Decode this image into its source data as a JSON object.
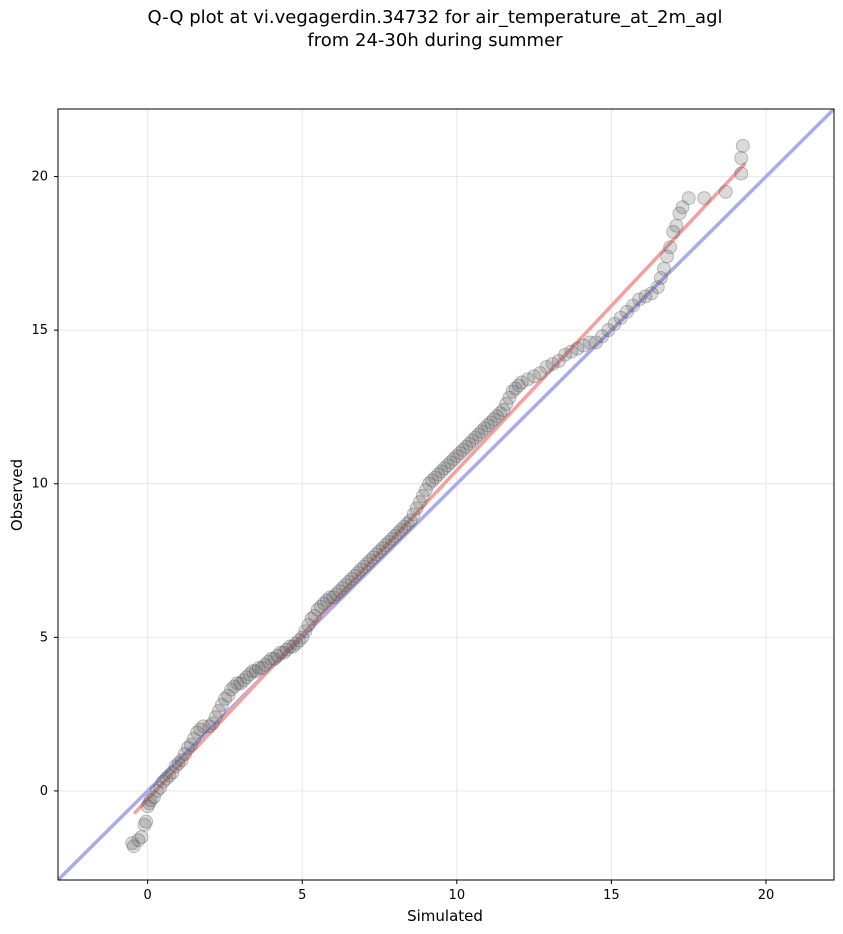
{
  "chart_data": {
    "type": "scatter",
    "title_lines": [
      "Q-Q plot at vi.vegagerdin.34732 for air_temperature_at_2m_agl",
      "from 24-30h during summer"
    ],
    "xlabel": "Simulated",
    "ylabel": "Observed",
    "xlim": [
      -2.9,
      22.2
    ],
    "ylim": [
      -2.9,
      22.2
    ],
    "xticks": [
      0,
      5,
      10,
      15,
      20
    ],
    "yticks": [
      0,
      5,
      10,
      15,
      20
    ],
    "grid": true,
    "colors": {
      "reference_line": "#aaaaee",
      "fit_line": "#f4a0a0",
      "points": "#555555"
    },
    "reference_line": {
      "from": [
        -2.9,
        -2.9
      ],
      "to": [
        22.2,
        22.2
      ]
    },
    "fit_line": {
      "from": [
        -0.4,
        -0.7
      ],
      "to": [
        19.3,
        20.4
      ]
    },
    "quantiles": [
      [
        -0.5,
        -1.7
      ],
      [
        -0.45,
        -1.8
      ],
      [
        -0.3,
        -1.6
      ],
      [
        -0.2,
        -1.5
      ],
      [
        -0.1,
        -1.1
      ],
      [
        -0.05,
        -1.0
      ],
      [
        0.0,
        -0.5
      ],
      [
        0.05,
        -0.4
      ],
      [
        0.1,
        -0.3
      ],
      [
        0.2,
        -0.2
      ],
      [
        0.3,
        0.0
      ],
      [
        0.4,
        0.1
      ],
      [
        0.5,
        0.3
      ],
      [
        0.6,
        0.4
      ],
      [
        0.7,
        0.5
      ],
      [
        0.8,
        0.6
      ],
      [
        0.9,
        0.8
      ],
      [
        1.0,
        0.9
      ],
      [
        1.1,
        1.0
      ],
      [
        1.2,
        1.2
      ],
      [
        1.3,
        1.4
      ],
      [
        1.4,
        1.5
      ],
      [
        1.5,
        1.7
      ],
      [
        1.6,
        1.9
      ],
      [
        1.7,
        2.0
      ],
      [
        1.8,
        2.1
      ],
      [
        2.0,
        2.1
      ],
      [
        2.1,
        2.2
      ],
      [
        2.2,
        2.4
      ],
      [
        2.3,
        2.6
      ],
      [
        2.4,
        2.8
      ],
      [
        2.5,
        3.0
      ],
      [
        2.6,
        3.1
      ],
      [
        2.7,
        3.3
      ],
      [
        2.8,
        3.4
      ],
      [
        2.9,
        3.5
      ],
      [
        3.0,
        3.5
      ],
      [
        3.1,
        3.6
      ],
      [
        3.2,
        3.7
      ],
      [
        3.3,
        3.8
      ],
      [
        3.4,
        3.9
      ],
      [
        3.5,
        3.9
      ],
      [
        3.6,
        4.0
      ],
      [
        3.7,
        4.0
      ],
      [
        3.8,
        4.1
      ],
      [
        3.9,
        4.2
      ],
      [
        4.0,
        4.3
      ],
      [
        4.1,
        4.3
      ],
      [
        4.2,
        4.4
      ],
      [
        4.3,
        4.5
      ],
      [
        4.4,
        4.5
      ],
      [
        4.5,
        4.6
      ],
      [
        4.6,
        4.7
      ],
      [
        4.7,
        4.7
      ],
      [
        4.8,
        4.8
      ],
      [
        4.9,
        4.9
      ],
      [
        5.0,
        5.0
      ],
      [
        5.1,
        5.2
      ],
      [
        5.2,
        5.4
      ],
      [
        5.3,
        5.6
      ],
      [
        5.4,
        5.7
      ],
      [
        5.5,
        5.9
      ],
      [
        5.6,
        6.0
      ],
      [
        5.7,
        6.1
      ],
      [
        5.8,
        6.2
      ],
      [
        5.9,
        6.3
      ],
      [
        6.0,
        6.3
      ],
      [
        6.1,
        6.4
      ],
      [
        6.2,
        6.5
      ],
      [
        6.3,
        6.6
      ],
      [
        6.4,
        6.7
      ],
      [
        6.5,
        6.8
      ],
      [
        6.6,
        6.9
      ],
      [
        6.7,
        7.0
      ],
      [
        6.8,
        7.1
      ],
      [
        6.9,
        7.2
      ],
      [
        7.0,
        7.3
      ],
      [
        7.1,
        7.4
      ],
      [
        7.2,
        7.5
      ],
      [
        7.3,
        7.6
      ],
      [
        7.4,
        7.7
      ],
      [
        7.5,
        7.8
      ],
      [
        7.6,
        7.9
      ],
      [
        7.7,
        8.0
      ],
      [
        7.8,
        8.1
      ],
      [
        7.9,
        8.2
      ],
      [
        8.0,
        8.3
      ],
      [
        8.1,
        8.4
      ],
      [
        8.2,
        8.5
      ],
      [
        8.3,
        8.6
      ],
      [
        8.4,
        8.7
      ],
      [
        8.5,
        8.8
      ],
      [
        8.6,
        9.0
      ],
      [
        8.7,
        9.2
      ],
      [
        8.8,
        9.4
      ],
      [
        8.9,
        9.6
      ],
      [
        9.0,
        9.8
      ],
      [
        9.1,
        10.0
      ],
      [
        9.2,
        10.1
      ],
      [
        9.3,
        10.2
      ],
      [
        9.4,
        10.3
      ],
      [
        9.5,
        10.4
      ],
      [
        9.6,
        10.5
      ],
      [
        9.7,
        10.6
      ],
      [
        9.8,
        10.7
      ],
      [
        9.9,
        10.8
      ],
      [
        10.0,
        10.9
      ],
      [
        10.1,
        11.0
      ],
      [
        10.2,
        11.1
      ],
      [
        10.3,
        11.2
      ],
      [
        10.4,
        11.3
      ],
      [
        10.5,
        11.4
      ],
      [
        10.6,
        11.5
      ],
      [
        10.7,
        11.6
      ],
      [
        10.8,
        11.7
      ],
      [
        10.9,
        11.8
      ],
      [
        11.0,
        11.9
      ],
      [
        11.1,
        12.0
      ],
      [
        11.2,
        12.1
      ],
      [
        11.3,
        12.2
      ],
      [
        11.4,
        12.3
      ],
      [
        11.5,
        12.4
      ],
      [
        11.6,
        12.6
      ],
      [
        11.7,
        12.8
      ],
      [
        11.8,
        13.0
      ],
      [
        11.9,
        13.1
      ],
      [
        12.0,
        13.2
      ],
      [
        12.1,
        13.3
      ],
      [
        12.3,
        13.4
      ],
      [
        12.5,
        13.5
      ],
      [
        12.7,
        13.6
      ],
      [
        12.9,
        13.8
      ],
      [
        13.1,
        13.9
      ],
      [
        13.3,
        14.0
      ],
      [
        13.5,
        14.2
      ],
      [
        13.7,
        14.3
      ],
      [
        13.9,
        14.4
      ],
      [
        14.1,
        14.5
      ],
      [
        14.3,
        14.6
      ],
      [
        14.5,
        14.6
      ],
      [
        14.7,
        14.8
      ],
      [
        14.9,
        15.0
      ],
      [
        15.1,
        15.2
      ],
      [
        15.3,
        15.4
      ],
      [
        15.5,
        15.6
      ],
      [
        15.7,
        15.8
      ],
      [
        15.9,
        16.0
      ],
      [
        16.1,
        16.1
      ],
      [
        16.3,
        16.2
      ],
      [
        16.5,
        16.4
      ],
      [
        16.6,
        16.7
      ],
      [
        16.7,
        17.0
      ],
      [
        16.8,
        17.4
      ],
      [
        16.9,
        17.7
      ],
      [
        17.0,
        18.2
      ],
      [
        17.1,
        18.4
      ],
      [
        17.2,
        18.8
      ],
      [
        17.3,
        19.0
      ],
      [
        17.5,
        19.3
      ],
      [
        18.0,
        19.3
      ],
      [
        18.7,
        19.5
      ],
      [
        19.2,
        20.1
      ],
      [
        19.2,
        20.6
      ],
      [
        19.25,
        21.0
      ]
    ]
  }
}
